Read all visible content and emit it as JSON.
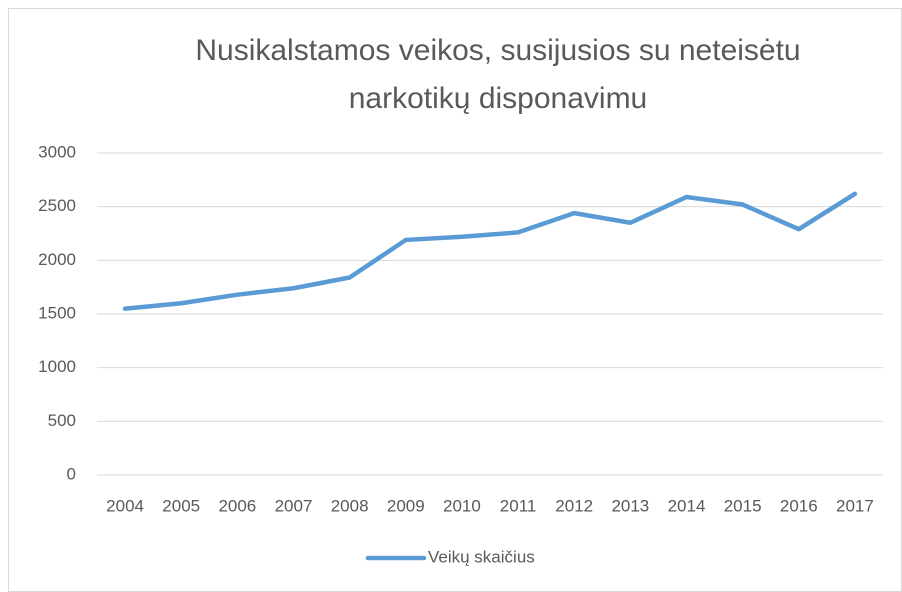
{
  "chart_data": {
    "type": "line",
    "title": "Nusikalstamos veikos, susijusios su neteisėtu narkotikų disponavimu",
    "categories": [
      "2004",
      "2005",
      "2006",
      "2007",
      "2008",
      "2009",
      "2010",
      "2011",
      "2012",
      "2013",
      "2014",
      "2015",
      "2016",
      "2017"
    ],
    "series": [
      {
        "name": "Veikų skaičius",
        "color": "#5b9bd5",
        "values": [
          1550,
          1600,
          1680,
          1740,
          1840,
          2190,
          2220,
          2260,
          2440,
          2350,
          2590,
          2520,
          2290,
          2620
        ]
      }
    ],
    "ylim": [
      0,
      3000
    ],
    "yticks": [
      0,
      500,
      1000,
      1500,
      2000,
      2500,
      3000
    ],
    "grid": true,
    "legend": "bottom"
  }
}
